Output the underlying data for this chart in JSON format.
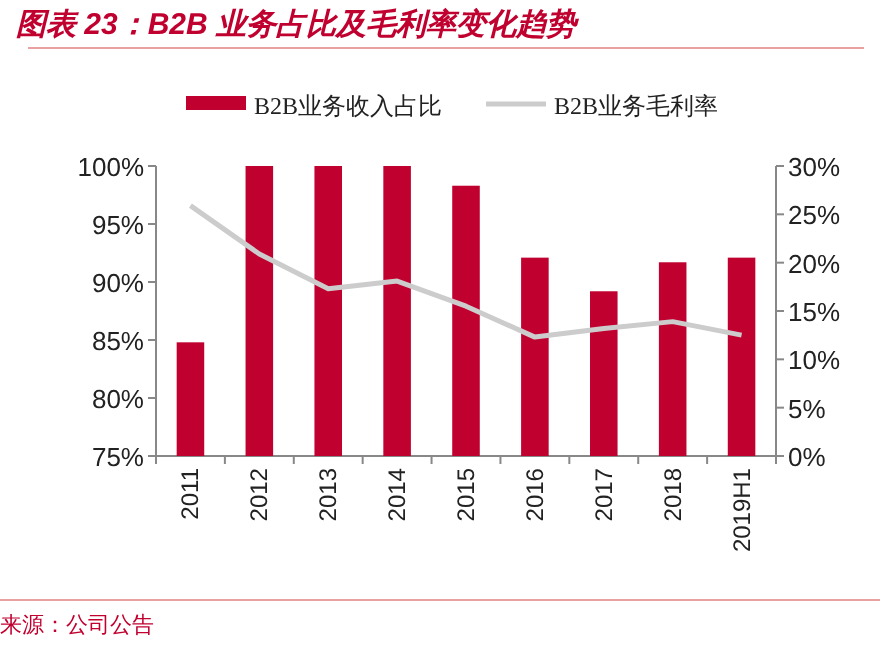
{
  "chart_data": {
    "type": "bar",
    "title": "图表 23：B2B 业务占比及毛利率变化趋势",
    "categories": [
      "2011",
      "2012",
      "2013",
      "2014",
      "2015",
      "2016",
      "2017",
      "2018",
      "2019H1"
    ],
    "series": [
      {
        "name": "B2B业务收入占比",
        "color": "#c0002f",
        "values": [
          84.8,
          100,
          100,
          100,
          98.3,
          92.1,
          89.2,
          91.7,
          92.1
        ]
      },
      {
        "name": "B2B业务毛利率",
        "type": "line",
        "axis": "y2",
        "color": "#cccccc",
        "values": [
          25.9,
          20.9,
          17.3,
          18.1,
          15.5,
          12.3,
          13.2,
          13.9,
          12.5
        ]
      }
    ],
    "ylim": [
      75,
      100
    ],
    "yticks": [
      {
        "value": 75,
        "label": "75%"
      },
      {
        "value": 80,
        "label": "80%"
      },
      {
        "value": 85,
        "label": "85%"
      },
      {
        "value": 90,
        "label": "90%"
      },
      {
        "value": 95,
        "label": "95%"
      },
      {
        "value": 100,
        "label": "100%"
      }
    ],
    "y2lim": [
      0,
      30
    ],
    "y2ticks": [
      {
        "value": 0,
        "label": "0%"
      },
      {
        "value": 5,
        "label": "5%"
      },
      {
        "value": 10,
        "label": "10%"
      },
      {
        "value": 15,
        "label": "15%"
      },
      {
        "value": 20,
        "label": "20%"
      },
      {
        "value": 25,
        "label": "25%"
      },
      {
        "value": 30,
        "label": "30%"
      }
    ],
    "legend": "top",
    "annotations": [
      "来源：公司公告"
    ]
  }
}
